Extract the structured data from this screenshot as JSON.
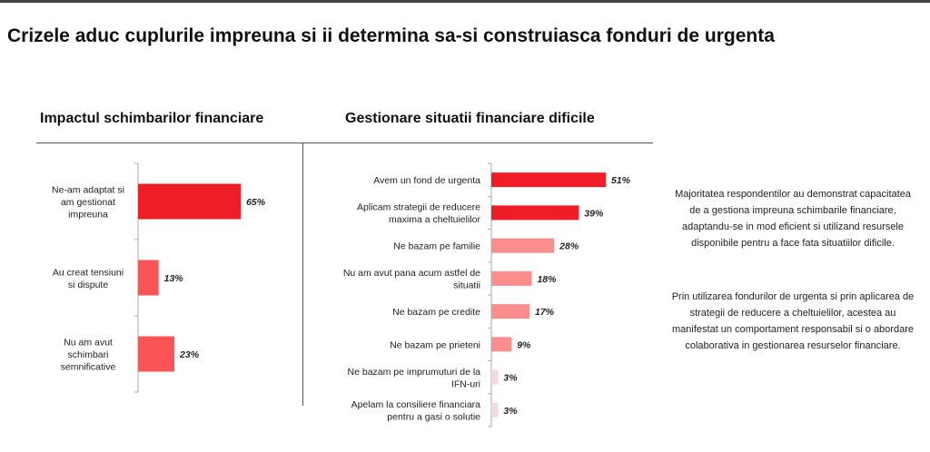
{
  "title": "Crizele aduc cuplurile impreuna si ii determina sa-si construiasca fonduri de urgenta",
  "chart_data": [
    {
      "type": "bar",
      "orientation": "horizontal",
      "title": "Impactul schimbarilor financiare",
      "categories": [
        [
          "Ne-am adaptat si",
          "am gestionat",
          "impreuna"
        ],
        [
          "Au creat tensiuni",
          "si dispute"
        ],
        [
          "Nu am avut",
          "schimbari",
          "semnificative"
        ]
      ],
      "values": [
        65,
        13,
        23
      ],
      "value_labels": [
        "65%",
        "13%",
        "23%"
      ],
      "colors": [
        "#ee1d26",
        "#fb5456",
        "#fb5456"
      ]
    },
    {
      "type": "bar",
      "orientation": "horizontal",
      "title": "Gestionare situatii financiare dificile",
      "categories": [
        [
          "Avem un fond de urgenta"
        ],
        [
          "Aplicam strategii de reducere",
          "maxima a cheltuielilor"
        ],
        [
          "Ne bazam pe familie"
        ],
        [
          "Nu am avut pana acum astfel de",
          "situatii"
        ],
        [
          "Ne bazam pe credite"
        ],
        [
          "Ne bazam pe prieteni"
        ],
        [
          "Ne bazam pe imprumuturi de la",
          "IFN-uri"
        ],
        [
          "Apelam la consiliere financiara",
          "pentru a gasi o solutie"
        ]
      ],
      "values": [
        51,
        39,
        28,
        18,
        17,
        9,
        3,
        3
      ],
      "value_labels": [
        "51%",
        "39%",
        "28%",
        "18%",
        "17%",
        "9%",
        "3%",
        "3%"
      ],
      "colors": [
        "#ee1d26",
        "#ee1d26",
        "#fb8d8e",
        "#fb8d8e",
        "#fb8d8e",
        "#fb8d8e",
        "#f3d9d9",
        "#f3d9d9"
      ]
    }
  ],
  "notes": [
    "Majoritatea respondentilor au demonstrat capacitatea de a gestiona impreuna schimbarile financiare, adaptandu-se in mod eficient si utilizand resursele disponibile pentru a face fata situatiilor dificile.",
    "Prin utilizarea fondurilor de urgenta si prin aplicarea de strategii de reducere a cheltuielilor, acestea au manifestat un comportament responsabil si o abordare colaborativa in gestionarea resurselor financiare."
  ]
}
